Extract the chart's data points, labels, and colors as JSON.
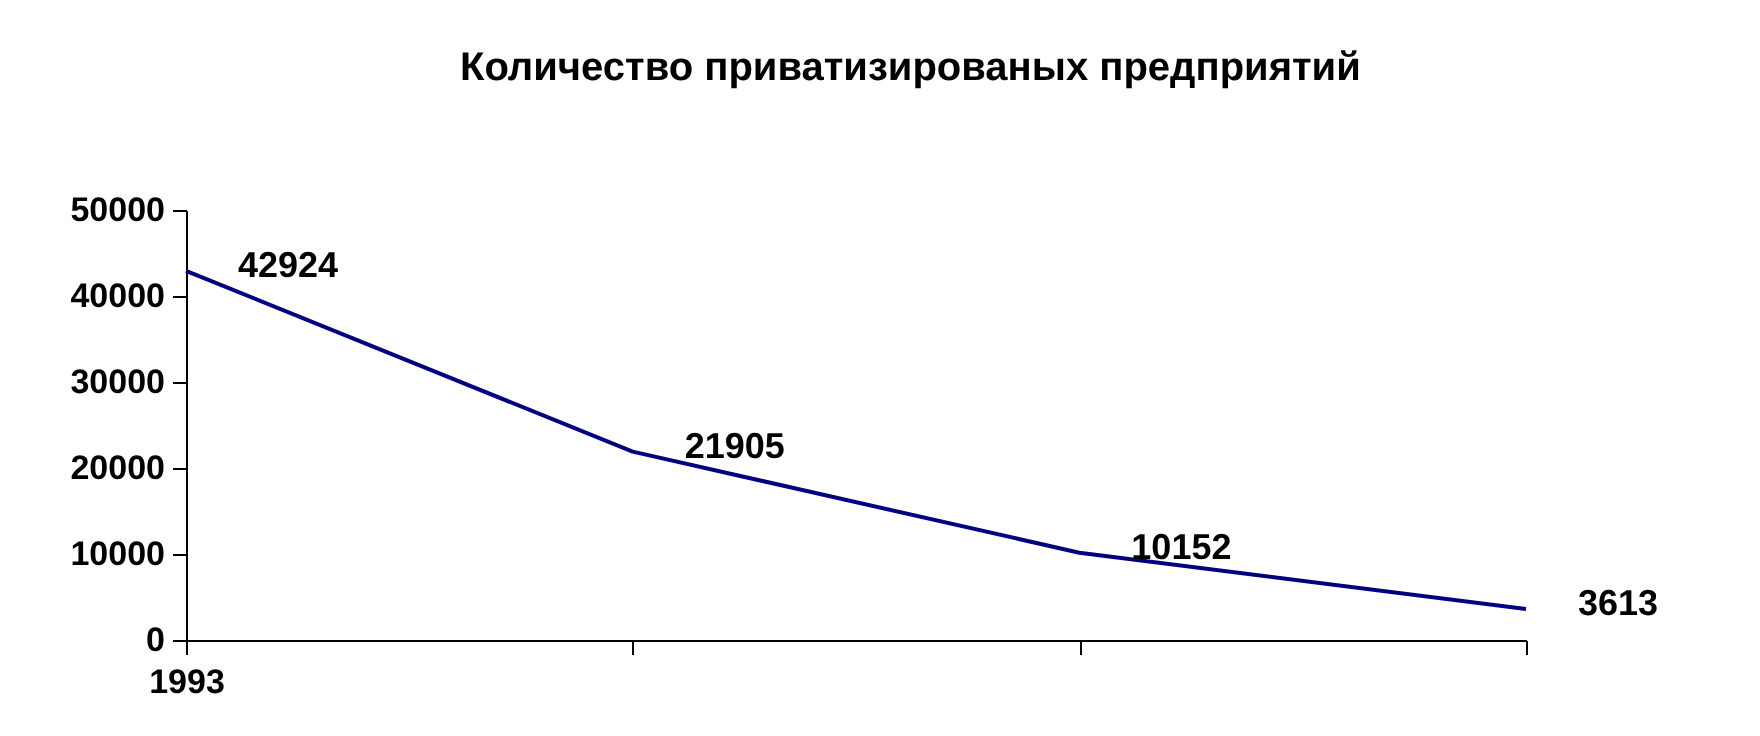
{
  "chart_data": {
    "type": "line",
    "title": "Количество приватизированых предприятий",
    "categories": [
      "1993",
      null,
      null,
      null
    ],
    "series": [
      {
        "color": "#000080",
        "values": [
          42924,
          21905,
          10152,
          3613
        ]
      }
    ],
    "ylim": [
      0,
      50000
    ],
    "yticks": [
      0,
      10000,
      20000,
      30000,
      40000,
      50000
    ],
    "grid": false,
    "data_labels": true,
    "marker": "none",
    "line_style": "solid"
  }
}
